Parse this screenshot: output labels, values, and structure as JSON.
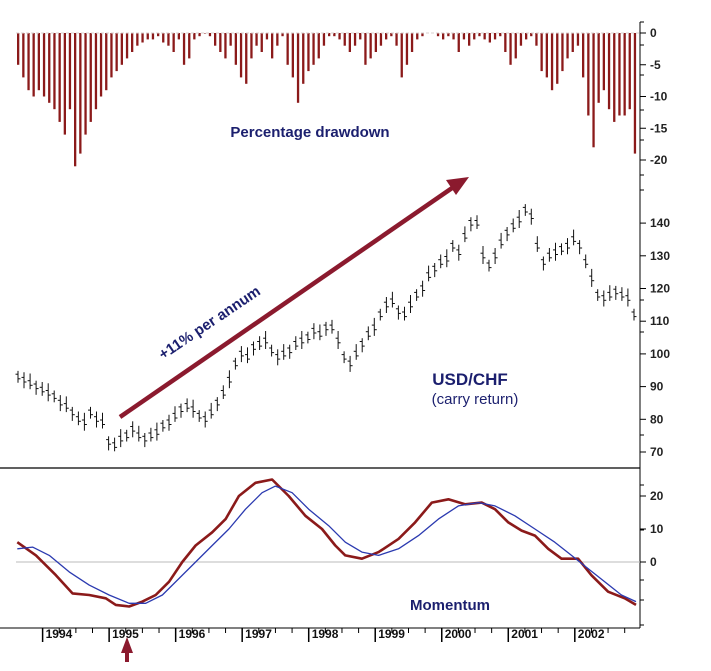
{
  "chart_data": [
    {
      "type": "bar",
      "title": "Percentage drawdown",
      "ylim": [
        -22,
        3
      ],
      "yticks": [
        0,
        -5,
        -10,
        -15,
        -20
      ],
      "color": "#8b1a1a",
      "values": [
        -5,
        -7,
        -9,
        -10,
        -9,
        -10,
        -11,
        -12,
        -14,
        -16,
        -12,
        -21,
        -19,
        -16,
        -14,
        -12,
        -10,
        -9,
        -7,
        -6,
        -5,
        -4,
        -3,
        -2,
        -1.5,
        -1,
        -1,
        -0.5,
        -1.5,
        -2,
        -3,
        -1,
        -5,
        -4,
        -1,
        -0.5,
        0,
        -0.5,
        -2,
        -3,
        -4,
        -2,
        -5,
        -7,
        -8,
        -4,
        -2,
        -3,
        -1,
        -4,
        -2,
        -0.5,
        -5,
        -7,
        -11,
        -8,
        -6,
        -5,
        -4,
        -2,
        -0.5,
        -0.5,
        -1,
        -2,
        -3,
        -2,
        -1,
        -5,
        -4,
        -3,
        -2,
        -1,
        -0.5,
        -2,
        -7,
        -5,
        -3,
        -1,
        -0.5,
        0,
        0,
        -0.5,
        -1,
        -0.5,
        -1,
        -3,
        -1,
        -2,
        -1,
        -0.5,
        -1,
        -1.5,
        -1,
        -0.5,
        -3,
        -5,
        -4,
        -2,
        -1,
        -0.5,
        -2,
        -6,
        -7,
        -9,
        -8,
        -6,
        -4,
        -3,
        -2,
        -7,
        -13,
        -18,
        -11,
        -9,
        -12,
        -14,
        -13,
        -13,
        -12,
        -19
      ],
      "tick_labels": [
        "0",
        "-5",
        "-10",
        "-15",
        "-20"
      ]
    },
    {
      "type": "line",
      "title": "USD/CHF",
      "subtitle": "(carry return)",
      "ylim": [
        65,
        148
      ],
      "yticks": [
        70,
        80,
        90,
        100,
        110,
        120,
        130,
        140
      ],
      "tick_labels": [
        "70",
        "80",
        "90",
        "100",
        "110",
        "120",
        "130",
        "140"
      ],
      "x_start": 1993.6,
      "x_end": 2002.95,
      "values": [
        93,
        92,
        91,
        90,
        89,
        88,
        87,
        85,
        84,
        82,
        80,
        79,
        82,
        80,
        79,
        73,
        72,
        74,
        75,
        77,
        75,
        74,
        75,
        76,
        78,
        79,
        81,
        83,
        84,
        83,
        81,
        80,
        82,
        85,
        88,
        92,
        97,
        100,
        99,
        102,
        103,
        104,
        101,
        99,
        100,
        101,
        103,
        104,
        105,
        107,
        106,
        108,
        108,
        104,
        99,
        97,
        100,
        103,
        106,
        108,
        112,
        115,
        116,
        113,
        112,
        115,
        118,
        120,
        124,
        126,
        128,
        129,
        133,
        131,
        136,
        140,
        140,
        130,
        127,
        130,
        134,
        137,
        139,
        141,
        144,
        142,
        133,
        128,
        130,
        131,
        132,
        133,
        135,
        133,
        128,
        123,
        118,
        117,
        118,
        119,
        118,
        117,
        112
      ]
    },
    {
      "type": "line",
      "title": "Momentum",
      "ylim": [
        -16,
        26
      ],
      "yticks": [
        0,
        10,
        20
      ],
      "tick_labels": [
        "0",
        "10",
        "20"
      ],
      "series": [
        {
          "name": "Momentum",
          "color": "#8b1a1a",
          "points": [
            [
              1993.62,
              6
            ],
            [
              1993.9,
              2
            ],
            [
              1994.2,
              -4
            ],
            [
              1994.45,
              -9.5
            ],
            [
              1994.7,
              -10
            ],
            [
              1994.95,
              -11
            ],
            [
              1995.1,
              -13
            ],
            [
              1995.3,
              -13.5
            ],
            [
              1995.5,
              -12
            ],
            [
              1995.7,
              -10
            ],
            [
              1995.9,
              -6
            ],
            [
              1996.1,
              0
            ],
            [
              1996.3,
              5
            ],
            [
              1996.55,
              9
            ],
            [
              1996.75,
              13
            ],
            [
              1996.95,
              20
            ],
            [
              1997.2,
              24
            ],
            [
              1997.45,
              25
            ],
            [
              1997.7,
              20
            ],
            [
              1997.95,
              14
            ],
            [
              1998.2,
              10
            ],
            [
              1998.4,
              5
            ],
            [
              1998.55,
              2
            ],
            [
              1998.8,
              1
            ],
            [
              1999.05,
              3
            ],
            [
              1999.35,
              7
            ],
            [
              1999.6,
              12
            ],
            [
              1999.85,
              18
            ],
            [
              2000.1,
              19
            ],
            [
              2000.35,
              17.5
            ],
            [
              2000.6,
              18
            ],
            [
              2000.8,
              16
            ],
            [
              2001.0,
              12
            ],
            [
              2001.2,
              9.5
            ],
            [
              2001.4,
              8
            ],
            [
              2001.6,
              4
            ],
            [
              2001.8,
              1
            ],
            [
              2002.05,
              1
            ],
            [
              2002.25,
              -4
            ],
            [
              2002.5,
              -9
            ],
            [
              2002.75,
              -11
            ],
            [
              2002.92,
              -13
            ]
          ]
        },
        {
          "name": "Smoothed",
          "color": "#2b3ab0",
          "points": [
            [
              1993.62,
              4
            ],
            [
              1993.85,
              4.5
            ],
            [
              1994.1,
              2
            ],
            [
              1994.4,
              -3
            ],
            [
              1994.7,
              -7
            ],
            [
              1995.0,
              -10
            ],
            [
              1995.3,
              -12.5
            ],
            [
              1995.55,
              -12.5
            ],
            [
              1995.8,
              -10
            ],
            [
              1996.05,
              -5
            ],
            [
              1996.3,
              0
            ],
            [
              1996.55,
              5
            ],
            [
              1996.8,
              10
            ],
            [
              1997.05,
              16
            ],
            [
              1997.3,
              21
            ],
            [
              1997.5,
              23
            ],
            [
              1997.75,
              21
            ],
            [
              1998.0,
              16
            ],
            [
              1998.3,
              11
            ],
            [
              1998.55,
              6
            ],
            [
              1998.8,
              3
            ],
            [
              1999.05,
              2
            ],
            [
              1999.35,
              4
            ],
            [
              1999.65,
              8
            ],
            [
              1999.95,
              13
            ],
            [
              2000.25,
              17
            ],
            [
              2000.55,
              18
            ],
            [
              2000.8,
              17
            ],
            [
              2001.1,
              14
            ],
            [
              2001.4,
              10
            ],
            [
              2001.7,
              6
            ],
            [
              2001.95,
              2
            ],
            [
              2002.2,
              -2
            ],
            [
              2002.45,
              -6
            ],
            [
              2002.7,
              -10
            ],
            [
              2002.92,
              -12
            ]
          ]
        }
      ],
      "zero_line": true
    }
  ],
  "annotations": {
    "trend_label": "+11% per annum",
    "drawdown_label": "Percentage drawdown",
    "price_label": "USD/CHF",
    "price_sub": "(carry return)",
    "momentum_label": "Momentum",
    "arrow_color": "#8b1a2e"
  },
  "x_axis": {
    "years": [
      "1994",
      "1995",
      "1996",
      "1997",
      "1998",
      "1999",
      "2000",
      "2001",
      "2002"
    ]
  }
}
